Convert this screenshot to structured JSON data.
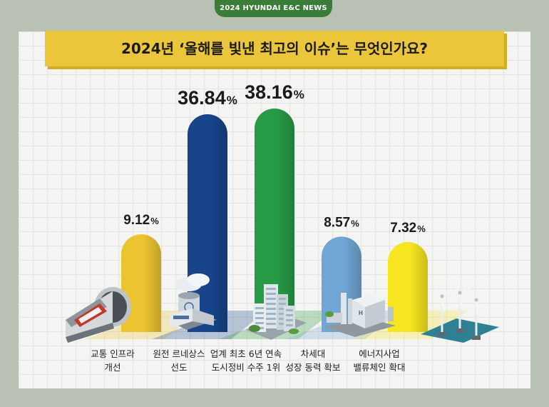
{
  "badge": "2024 HYUNDAI E&C NEWS",
  "title": "2024년 ‘올해를 빛낸 최고의 이슈’는 무엇인가요?",
  "chart_data": {
    "type": "bar",
    "categories": [
      [
        "교통 인프라",
        "개선"
      ],
      [
        "원전 르네상스",
        "선도"
      ],
      [
        "업계 최초 6년 연속",
        "도시정비 수주 1위"
      ],
      [
        "차세대",
        "성장 동력 확보"
      ],
      [
        "에너지사업",
        "밸류체인 확대"
      ]
    ],
    "values": [
      9.12,
      36.84,
      38.16,
      8.57,
      7.32
    ],
    "value_labels": [
      "9.12",
      "36.84",
      "38.16",
      "8.57",
      "7.32"
    ],
    "unit": "%",
    "colors": [
      "#ecc430",
      "#17448a",
      "#279a45",
      "#6fa6d3",
      "#f7e61f"
    ],
    "icons": [
      "subway-tunnel-icon",
      "nuclear-plant-icon",
      "city-buildings-icon",
      "hydrogen-plant-icon",
      "wind-turbines-icon"
    ]
  }
}
